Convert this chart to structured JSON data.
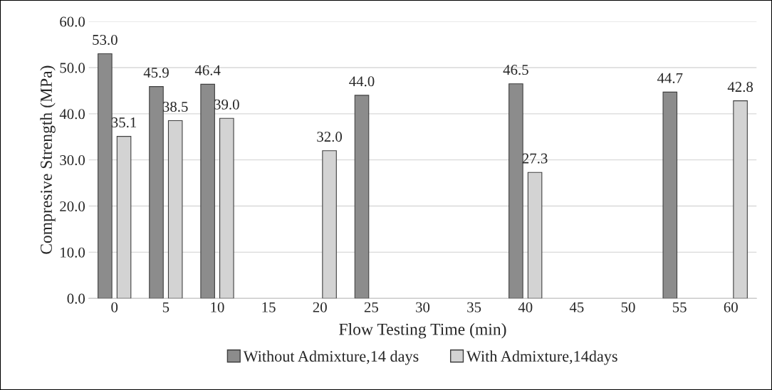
{
  "chart_data": {
    "type": "bar",
    "xlabel": "Flow Testing Time (min)",
    "ylabel": "Compresive Strength (MPa)",
    "categories": [
      "0",
      "5",
      "10",
      "15",
      "20",
      "25",
      "30",
      "35",
      "40",
      "45",
      "50",
      "55",
      "60"
    ],
    "series": [
      {
        "name": "Without Admixture,14 days",
        "color": "#8c8c8c",
        "values": [
          53.0,
          45.9,
          46.4,
          null,
          null,
          44.0,
          null,
          null,
          46.5,
          null,
          null,
          44.7,
          null
        ],
        "value_labels": [
          "53.0",
          "45.9",
          "46.4",
          null,
          null,
          "44.0",
          null,
          null,
          "46.5",
          null,
          null,
          "44.7",
          null
        ]
      },
      {
        "name": "With Admixture,14days",
        "color": "#d3d3d3",
        "values": [
          35.1,
          38.5,
          39.0,
          null,
          32.0,
          null,
          null,
          null,
          27.3,
          null,
          null,
          null,
          42.8
        ],
        "value_labels": [
          "35.1",
          "38.5",
          "39.0",
          null,
          "32.0",
          null,
          null,
          null,
          "27.3",
          null,
          null,
          null,
          "42.8"
        ]
      }
    ],
    "ylim": [
      0,
      60
    ],
    "yticks": [
      {
        "value": 0,
        "label": "0.0"
      },
      {
        "value": 10,
        "label": "10.0"
      },
      {
        "value": 20,
        "label": "20.0"
      },
      {
        "value": 30,
        "label": "30.0"
      },
      {
        "value": 40,
        "label": "40.0"
      },
      {
        "value": 50,
        "label": "50.0"
      },
      {
        "value": 60,
        "label": "60.0"
      }
    ],
    "grid": "y",
    "legend": "bottom"
  }
}
